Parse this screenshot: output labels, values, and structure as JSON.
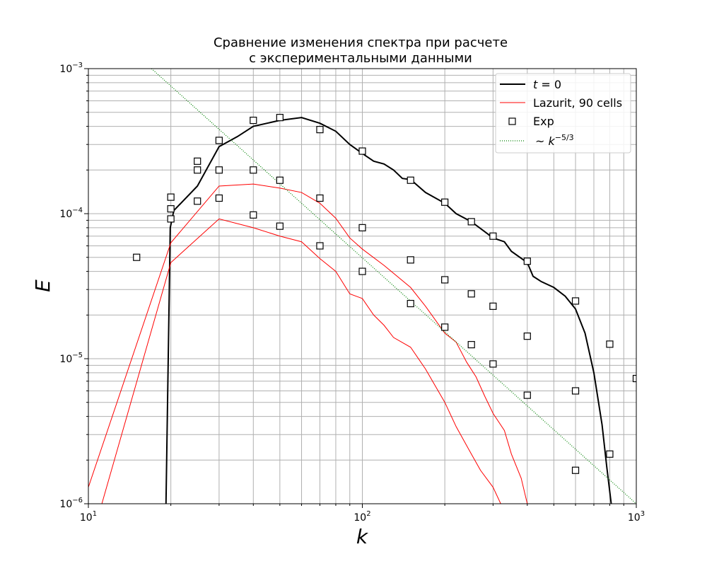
{
  "chart_data": {
    "type": "line",
    "title_lines": [
      "Сравнение изменения спектра при расчете",
      "с экспериментальными данными"
    ],
    "xlabel": "k",
    "ylabel": "E",
    "xscale": "log",
    "yscale": "log",
    "xlim": [
      10,
      1000
    ],
    "ylim": [
      1e-06,
      0.001
    ],
    "x_ticks": [
      {
        "value": 10,
        "base": "10",
        "exp": "1"
      },
      {
        "value": 100,
        "base": "10",
        "exp": "2"
      },
      {
        "value": 1000,
        "base": "10",
        "exp": "3"
      }
    ],
    "y_ticks": [
      {
        "value": 1e-06,
        "base": "10",
        "exp": "−6"
      },
      {
        "value": 1e-05,
        "base": "10",
        "exp": "−5"
      },
      {
        "value": 0.0001,
        "base": "10",
        "exp": "−4"
      },
      {
        "value": 0.001,
        "base": "10",
        "exp": "−3"
      }
    ],
    "grid": "both major and minor",
    "legend_position": "top-right",
    "legend": [
      {
        "label_prefix": "t",
        "label_suffix": " = 0",
        "italic_prefix": true,
        "style": "line",
        "color": "#000000"
      },
      {
        "label": "Lazurit, 90 cells",
        "style": "line",
        "color": "#ff0000"
      },
      {
        "label": "Exp",
        "style": "square-marker",
        "color": "#000000"
      },
      {
        "label_prefix": "~ k",
        "superscript": "−5/3",
        "style": "dotted",
        "color": "#008000"
      }
    ],
    "series": [
      {
        "name": "t = 0",
        "color": "#000000",
        "style": "line",
        "points": [
          [
            19.2,
            1e-06
          ],
          [
            19.9,
            8e-05
          ],
          [
            20.5,
            0.000105
          ],
          [
            25,
            0.000155
          ],
          [
            30,
            0.00029
          ],
          [
            35,
            0.00034
          ],
          [
            40,
            0.0004
          ],
          [
            50,
            0.00044
          ],
          [
            60,
            0.00046
          ],
          [
            70,
            0.00042
          ],
          [
            80,
            0.00037
          ],
          [
            90,
            0.0003
          ],
          [
            100,
            0.00026
          ],
          [
            110,
            0.00023
          ],
          [
            120,
            0.00022
          ],
          [
            130,
            0.0002
          ],
          [
            140,
            0.000175
          ],
          [
            150,
            0.000172
          ],
          [
            170,
            0.00014
          ],
          [
            200,
            0.000118
          ],
          [
            220,
            0.0001
          ],
          [
            250,
            8.8e-05
          ],
          [
            280,
            7.5e-05
          ],
          [
            300,
            6.8e-05
          ],
          [
            330,
            6.4e-05
          ],
          [
            350,
            5.5e-05
          ],
          [
            400,
            4.6e-05
          ],
          [
            420,
            3.7e-05
          ],
          [
            450,
            3.4e-05
          ],
          [
            500,
            3.1e-05
          ],
          [
            550,
            2.7e-05
          ],
          [
            600,
            2.2e-05
          ],
          [
            650,
            1.5e-05
          ],
          [
            700,
            8e-06
          ],
          [
            750,
            3.5e-06
          ],
          [
            780,
            1.8e-06
          ],
          [
            810,
            1e-06
          ]
        ]
      },
      {
        "name": "Lazurit, 90 cells (upper)",
        "color": "#ff0000",
        "style": "line",
        "points": [
          [
            10,
            1.3e-06
          ],
          [
            20,
            6.3e-05
          ],
          [
            30,
            0.000155
          ],
          [
            40,
            0.00016
          ],
          [
            50,
            0.00015
          ],
          [
            60,
            0.00014
          ],
          [
            70,
            0.000118
          ],
          [
            80,
            9.3e-05
          ],
          [
            90,
            6.8e-05
          ],
          [
            100,
            5.7e-05
          ],
          [
            120,
            4.4e-05
          ],
          [
            150,
            3.1e-05
          ],
          [
            170,
            2.3e-05
          ],
          [
            200,
            1.5e-05
          ],
          [
            220,
            1.3e-05
          ],
          [
            240,
            9.5e-06
          ],
          [
            260,
            7.5e-06
          ],
          [
            280,
            5.5e-06
          ],
          [
            300,
            4.2e-06
          ],
          [
            330,
            3.2e-06
          ],
          [
            350,
            2.2e-06
          ],
          [
            380,
            1.5e-06
          ],
          [
            400,
            1e-06
          ]
        ]
      },
      {
        "name": "Lazurit, 90 cells (lower)",
        "color": "#ff0000",
        "style": "line",
        "points": [
          [
            11.2,
            1e-06
          ],
          [
            20,
            4.6e-05
          ],
          [
            30,
            9.2e-05
          ],
          [
            40,
            8e-05
          ],
          [
            50,
            7e-05
          ],
          [
            60,
            6.4e-05
          ],
          [
            70,
            4.9e-05
          ],
          [
            80,
            4e-05
          ],
          [
            90,
            2.8e-05
          ],
          [
            100,
            2.6e-05
          ],
          [
            110,
            2e-05
          ],
          [
            120,
            1.7e-05
          ],
          [
            130,
            1.4e-05
          ],
          [
            150,
            1.2e-05
          ],
          [
            170,
            8.5e-06
          ],
          [
            200,
            5e-06
          ],
          [
            220,
            3.4e-06
          ],
          [
            250,
            2.2e-06
          ],
          [
            270,
            1.7e-06
          ],
          [
            300,
            1.3e-06
          ],
          [
            320,
            1e-06
          ]
        ]
      },
      {
        "name": "~ k^-5/3",
        "color": "#008000",
        "style": "dotted",
        "points": [
          [
            17,
            0.001
          ],
          [
            1000,
            1e-06
          ]
        ]
      },
      {
        "name": "Exp",
        "color": "#000000",
        "style": "square",
        "points": [
          [
            15,
            5e-05
          ],
          [
            20,
            0.00013
          ],
          [
            20,
            0.000108
          ],
          [
            20,
            9.2e-05
          ],
          [
            25,
            0.00023
          ],
          [
            25,
            0.0002
          ],
          [
            25,
            0.000122
          ],
          [
            30,
            0.00032
          ],
          [
            30,
            0.0002
          ],
          [
            30,
            0.000128
          ],
          [
            40,
            0.00044
          ],
          [
            40,
            0.0002
          ],
          [
            40,
            9.8e-05
          ],
          [
            50,
            0.00046
          ],
          [
            50,
            0.00017
          ],
          [
            50,
            8.2e-05
          ],
          [
            70,
            0.00038
          ],
          [
            70,
            0.000128
          ],
          [
            70,
            6e-05
          ],
          [
            100,
            0.00027
          ],
          [
            100,
            8e-05
          ],
          [
            100,
            4e-05
          ],
          [
            150,
            0.00017
          ],
          [
            150,
            4.8e-05
          ],
          [
            150,
            2.4e-05
          ],
          [
            200,
            0.00012
          ],
          [
            200,
            3.5e-05
          ],
          [
            200,
            1.65e-05
          ],
          [
            250,
            8.8e-05
          ],
          [
            250,
            2.8e-05
          ],
          [
            250,
            1.25e-05
          ],
          [
            300,
            7e-05
          ],
          [
            300,
            2.3e-05
          ],
          [
            300,
            9.2e-06
          ],
          [
            400,
            4.7e-05
          ],
          [
            400,
            1.43e-05
          ],
          [
            400,
            5.6e-06
          ],
          [
            600,
            2.5e-05
          ],
          [
            600,
            6e-06
          ],
          [
            600,
            1.7e-06
          ],
          [
            800,
            1.26e-05
          ],
          [
            800,
            2.2e-06
          ],
          [
            1000,
            7.3e-06
          ]
        ]
      }
    ]
  }
}
